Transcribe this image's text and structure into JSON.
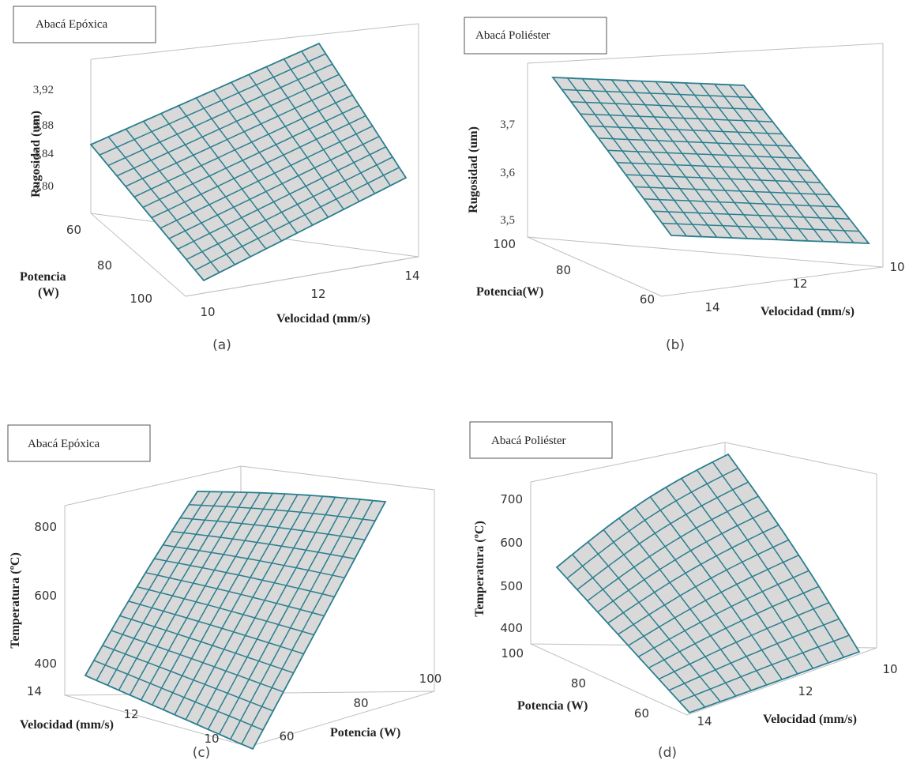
{
  "chart_data": [
    {
      "type": "surface",
      "panel": "(a)",
      "title": "Abacá Epóxica",
      "xlabel": "Velocidad (mm/s)",
      "ylabel": "Potencia\n(W)",
      "zlabel": "Rugosidad (um)",
      "x_ticks": [
        "10",
        "12",
        "14"
      ],
      "y_ticks": [
        "60",
        "80",
        "100"
      ],
      "z_ticks": [
        "3,80",
        "3,84",
        "3,88",
        "3,92"
      ],
      "xlim": [
        10,
        14
      ],
      "ylim": [
        60,
        100
      ],
      "corners": [
        {
          "velocidad": 10,
          "potencia": 100,
          "z": 3.76
        },
        {
          "velocidad": 14,
          "potencia": 100,
          "z": 3.84
        },
        {
          "velocidad": 10,
          "potencia": 60,
          "z": 3.84
        },
        {
          "velocidad": 14,
          "potencia": 60,
          "z": 3.93
        }
      ]
    },
    {
      "type": "surface",
      "panel": "(b)",
      "title": "Abacá Poliéster",
      "xlabel": "Velocidad (mm/s)",
      "ylabel": "Potencia(W)",
      "zlabel": "Rugosidad (um)",
      "x_ticks": [
        "10",
        "12",
        "14"
      ],
      "y_ticks": [
        "60",
        "80",
        "100"
      ],
      "z_ticks": [
        "3,5",
        "3,6",
        "3,7"
      ],
      "xlim": [
        10,
        14
      ],
      "ylim": [
        60,
        100
      ],
      "corners": [
        {
          "velocidad": 14,
          "potencia": 100,
          "z": 3.72
        },
        {
          "velocidad": 10,
          "potencia": 100,
          "z": 3.72
        },
        {
          "velocidad": 14,
          "potencia": 60,
          "z": 3.49
        },
        {
          "velocidad": 10,
          "potencia": 60,
          "z": 3.48
        }
      ]
    },
    {
      "type": "surface",
      "panel": "(c)",
      "title": "Abacá Epóxica",
      "xlabel": "Velocidad (mm/s)",
      "ylabel": "Potencia (W)",
      "zlabel": "Temperatura (ºC)",
      "x_ticks": [
        "10",
        "12",
        "14"
      ],
      "y_ticks": [
        "60",
        "80",
        "100"
      ],
      "z_ticks": [
        "400",
        "600",
        "800"
      ],
      "xlim": [
        10,
        14
      ],
      "ylim": [
        60,
        100
      ],
      "corners": [
        {
          "velocidad": 14,
          "potencia": 60,
          "z": 420
        },
        {
          "velocidad": 10,
          "potencia": 60,
          "z": 380
        },
        {
          "velocidad": 14,
          "potencia": 100,
          "z": 880
        },
        {
          "velocidad": 10,
          "potencia": 100,
          "z": 860
        }
      ]
    },
    {
      "type": "surface",
      "panel": "(d)",
      "title": "Abacá Poliéster",
      "xlabel": "Velocidad (mm/s)",
      "ylabel": "Potencia (W)",
      "zlabel": "Temperatura (ºC)",
      "x_ticks": [
        "10",
        "12",
        "14"
      ],
      "y_ticks": [
        "60",
        "80",
        "100"
      ],
      "z_ticks": [
        "400",
        "500",
        "600",
        "700"
      ],
      "xlim": [
        10,
        14
      ],
      "ylim": [
        60,
        100
      ],
      "corners": [
        {
          "velocidad": 14,
          "potencia": 100,
          "z": 540
        },
        {
          "velocidad": 10,
          "potencia": 100,
          "z": 800
        },
        {
          "velocidad": 14,
          "potencia": 60,
          "z": 390
        },
        {
          "velocidad": 10,
          "potencia": 60,
          "z": 400
        }
      ]
    }
  ],
  "colors": {
    "surface_fill": "#d9d9d9",
    "surface_line": "#2a7f8f",
    "box_line": "#bfbfbf"
  }
}
